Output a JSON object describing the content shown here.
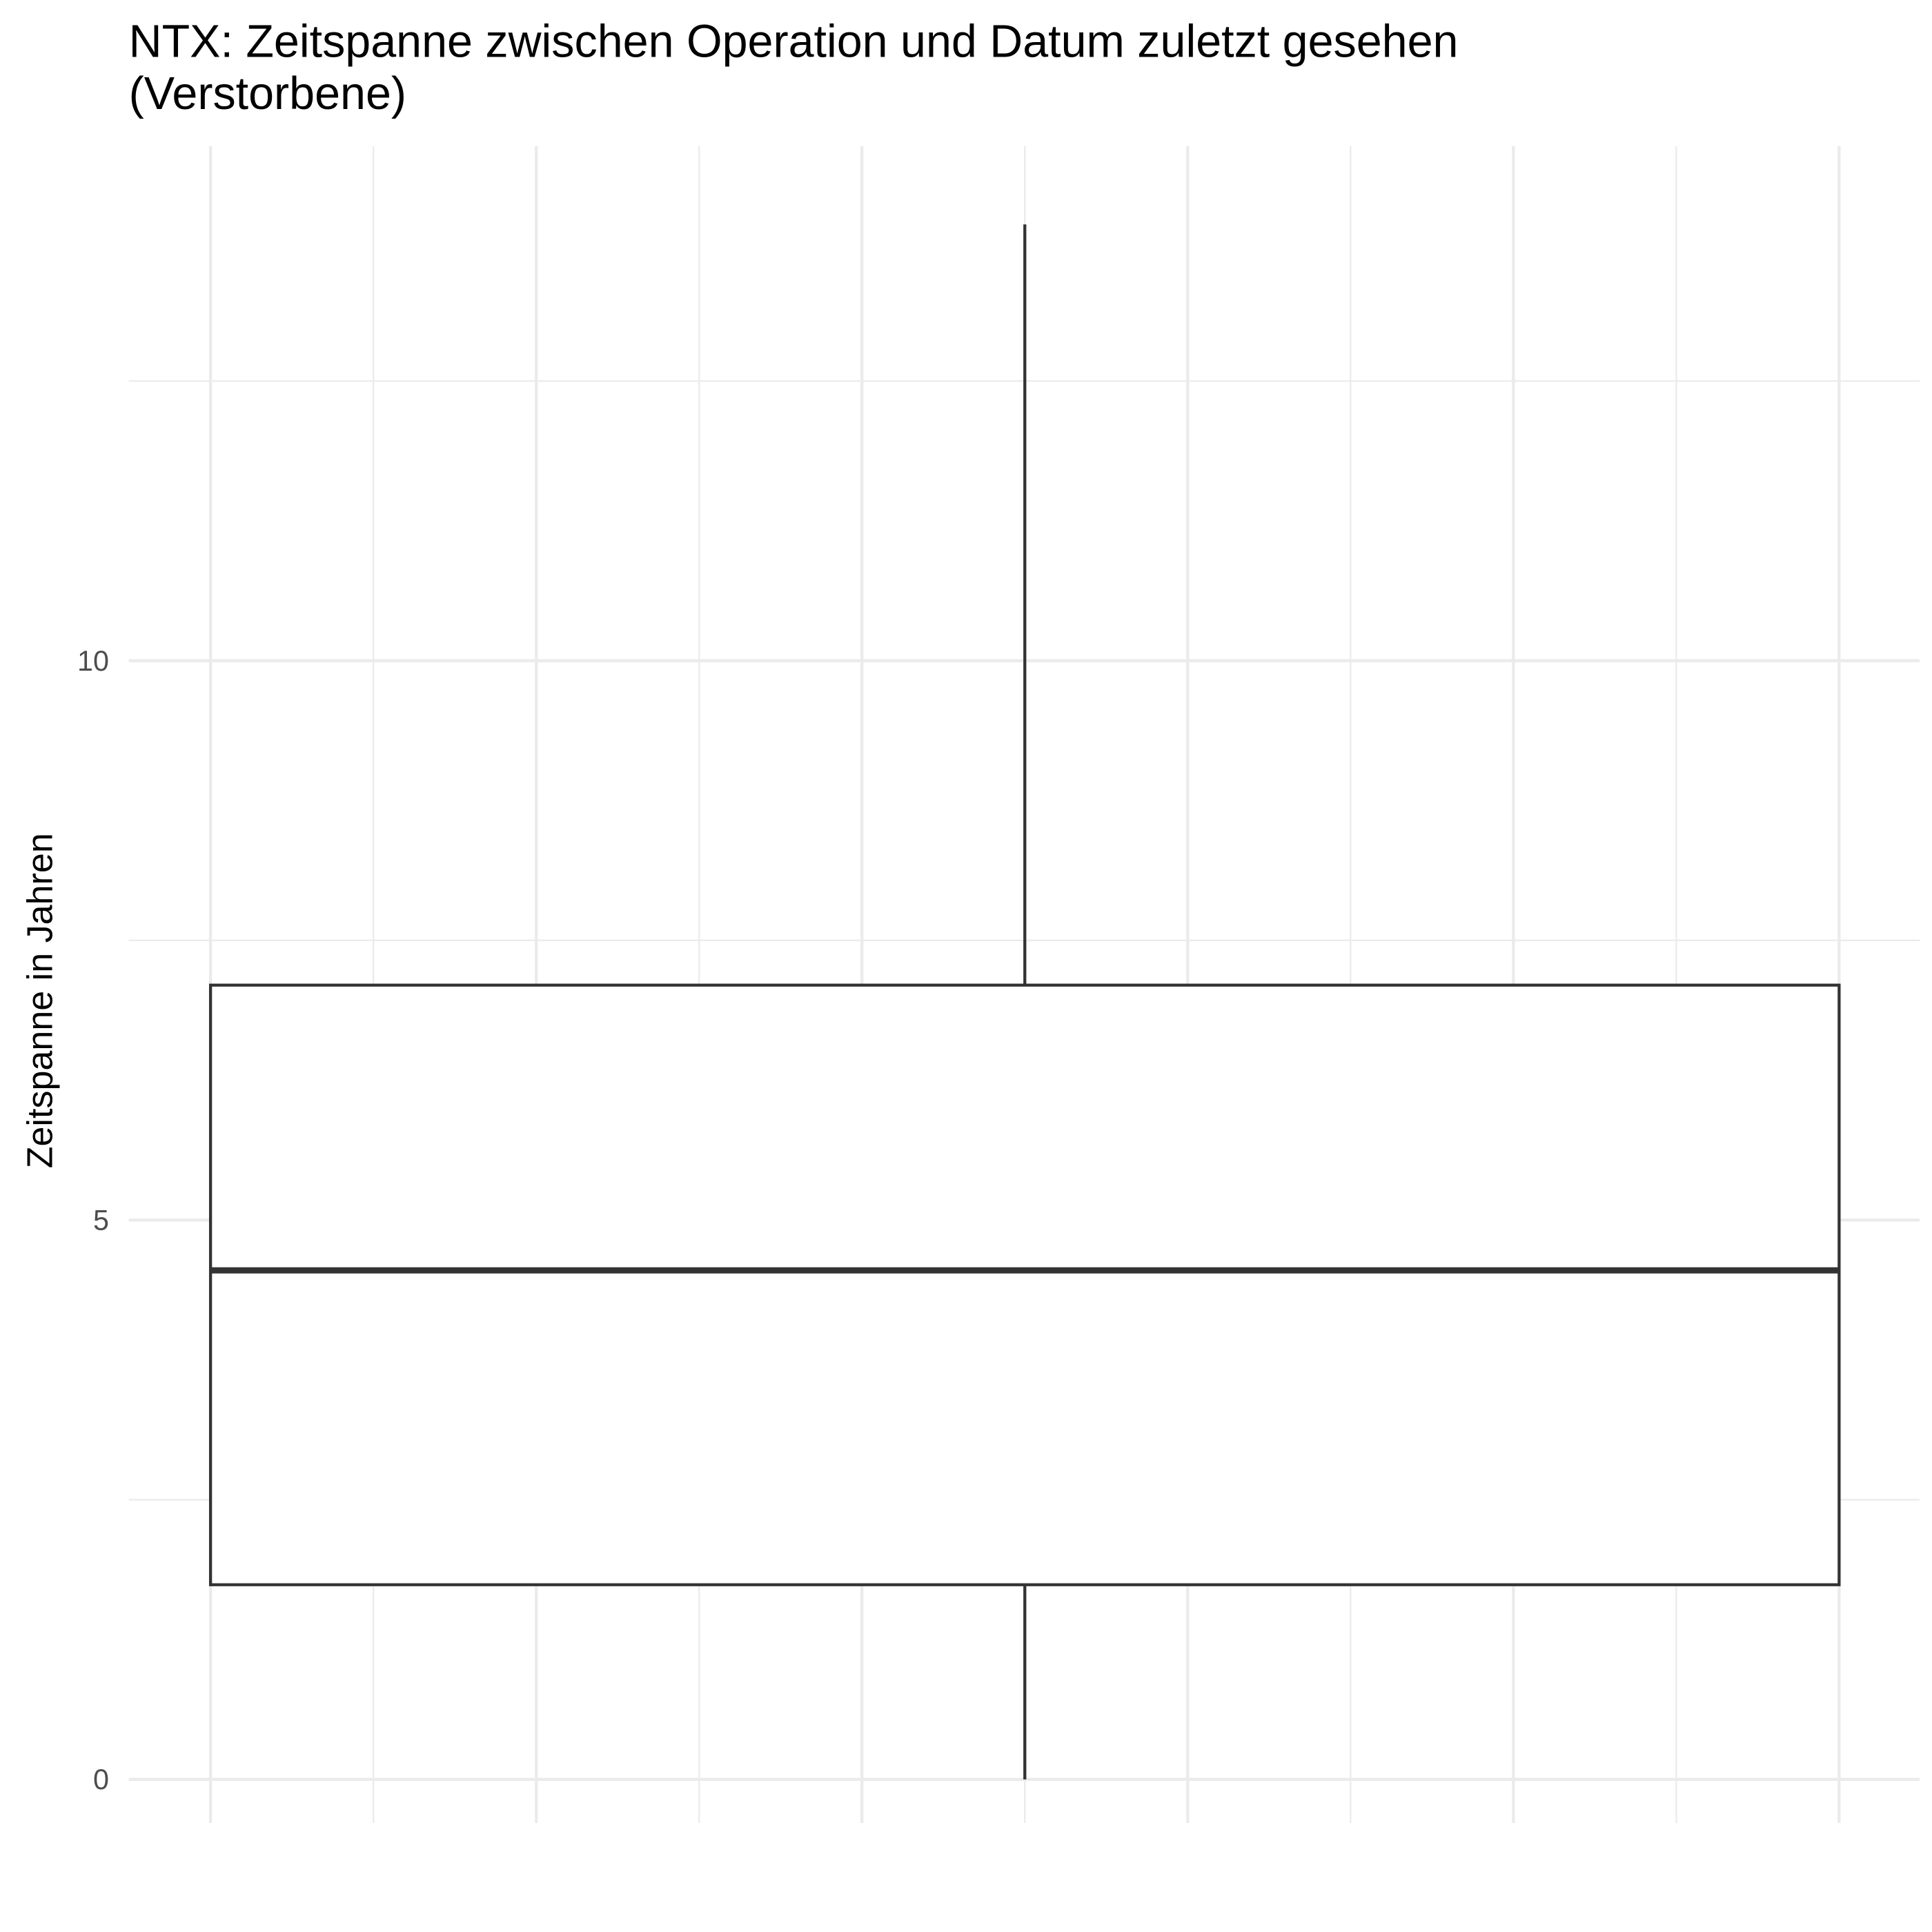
{
  "chart_data": {
    "type": "box",
    "title": "NTX: Zeitspanne zwischen Operation und Datum zuletzt gesehen\n(Verstorbene)",
    "y_label": "Zeitspanne in Jahren",
    "box": {
      "low": 0,
      "q1": 1.74,
      "median": 4.55,
      "q3": 7.1,
      "high": 13.9
    },
    "color": "#333333",
    "ylim": [
      -0.39,
      14.6
    ],
    "yticks": [
      0,
      5,
      10
    ],
    "grid": true
  }
}
